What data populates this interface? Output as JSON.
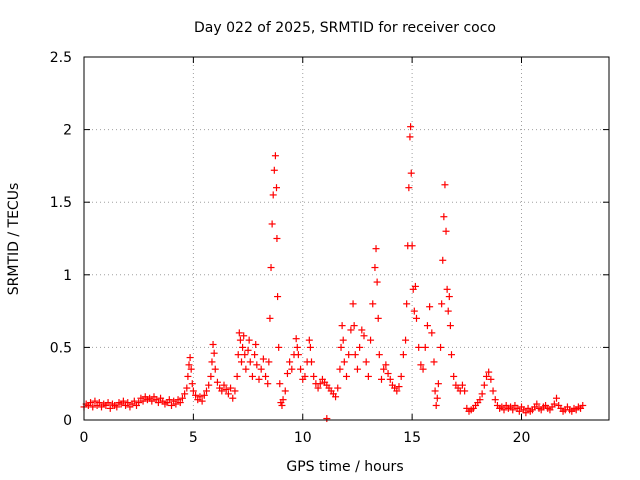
{
  "chart_data": {
    "type": "scatter",
    "title": "Day 022 of 2025, SRMTID for receiver coco",
    "xlabel": "GPS time / hours",
    "ylabel": "SRMTID / TECUs",
    "xlim": [
      0,
      24
    ],
    "ylim": [
      0,
      2.5
    ],
    "xticks": [
      0,
      5,
      10,
      15,
      20
    ],
    "xtick_labels": [
      "0",
      "5",
      "10",
      "15",
      "20"
    ],
    "yticks": [
      0,
      0.5,
      1,
      1.5,
      2,
      2.5
    ],
    "ytick_labels": [
      "0",
      "0.5",
      "1",
      "1.5",
      "2",
      "2.5"
    ],
    "grid": true,
    "marker": "+",
    "color": "#ff0000",
    "series": [
      {
        "name": "SRMTID",
        "points": [
          [
            0.0,
            0.09
          ],
          [
            0.1,
            0.11
          ],
          [
            0.2,
            0.1
          ],
          [
            0.3,
            0.12
          ],
          [
            0.4,
            0.09
          ],
          [
            0.5,
            0.13
          ],
          [
            0.6,
            0.1
          ],
          [
            0.7,
            0.12
          ],
          [
            0.8,
            0.09
          ],
          [
            0.9,
            0.11
          ],
          [
            1.0,
            0.1
          ],
          [
            1.1,
            0.12
          ],
          [
            1.2,
            0.08
          ],
          [
            1.3,
            0.11
          ],
          [
            1.4,
            0.1
          ],
          [
            1.5,
            0.09
          ],
          [
            1.6,
            0.12
          ],
          [
            1.7,
            0.11
          ],
          [
            1.8,
            0.13
          ],
          [
            1.9,
            0.1
          ],
          [
            2.0,
            0.12
          ],
          [
            2.1,
            0.09
          ],
          [
            2.2,
            0.11
          ],
          [
            2.3,
            0.13
          ],
          [
            2.4,
            0.1
          ],
          [
            2.5,
            0.12
          ],
          [
            2.6,
            0.15
          ],
          [
            2.7,
            0.13
          ],
          [
            2.8,
            0.16
          ],
          [
            2.9,
            0.14
          ],
          [
            3.0,
            0.15
          ],
          [
            3.1,
            0.13
          ],
          [
            3.2,
            0.16
          ],
          [
            3.3,
            0.14
          ],
          [
            3.4,
            0.12
          ],
          [
            3.5,
            0.15
          ],
          [
            3.6,
            0.13
          ],
          [
            3.7,
            0.11
          ],
          [
            3.8,
            0.12
          ],
          [
            3.9,
            0.14
          ],
          [
            4.0,
            0.1
          ],
          [
            4.1,
            0.13
          ],
          [
            4.2,
            0.11
          ],
          [
            4.3,
            0.14
          ],
          [
            4.4,
            0.12
          ],
          [
            4.5,
            0.15
          ],
          [
            4.6,
            0.18
          ],
          [
            4.7,
            0.22
          ],
          [
            4.75,
            0.3
          ],
          [
            4.8,
            0.38
          ],
          [
            4.85,
            0.43
          ],
          [
            4.9,
            0.35
          ],
          [
            4.95,
            0.25
          ],
          [
            5.0,
            0.2
          ],
          [
            5.1,
            0.17
          ],
          [
            5.2,
            0.14
          ],
          [
            5.3,
            0.16
          ],
          [
            5.4,
            0.13
          ],
          [
            5.5,
            0.17
          ],
          [
            5.6,
            0.2
          ],
          [
            5.7,
            0.24
          ],
          [
            5.8,
            0.3
          ],
          [
            5.85,
            0.4
          ],
          [
            5.9,
            0.52
          ],
          [
            5.95,
            0.46
          ],
          [
            6.0,
            0.35
          ],
          [
            6.1,
            0.26
          ],
          [
            6.2,
            0.22
          ],
          [
            6.3,
            0.2
          ],
          [
            6.4,
            0.24
          ],
          [
            6.5,
            0.21
          ],
          [
            6.6,
            0.18
          ],
          [
            6.7,
            0.22
          ],
          [
            6.8,
            0.15
          ],
          [
            6.9,
            0.2
          ],
          [
            7.0,
            0.3
          ],
          [
            7.05,
            0.45
          ],
          [
            7.1,
            0.6
          ],
          [
            7.15,
            0.55
          ],
          [
            7.2,
            0.4
          ],
          [
            7.25,
            0.5
          ],
          [
            7.3,
            0.58
          ],
          [
            7.35,
            0.45
          ],
          [
            7.4,
            0.35
          ],
          [
            7.5,
            0.48
          ],
          [
            7.55,
            0.55
          ],
          [
            7.6,
            0.4
          ],
          [
            7.7,
            0.3
          ],
          [
            7.8,
            0.45
          ],
          [
            7.85,
            0.52
          ],
          [
            7.9,
            0.38
          ],
          [
            8.0,
            0.28
          ],
          [
            8.1,
            0.35
          ],
          [
            8.2,
            0.42
          ],
          [
            8.3,
            0.3
          ],
          [
            8.4,
            0.25
          ],
          [
            8.45,
            0.4
          ],
          [
            8.5,
            0.7
          ],
          [
            8.55,
            1.05
          ],
          [
            8.6,
            1.35
          ],
          [
            8.65,
            1.55
          ],
          [
            8.7,
            1.72
          ],
          [
            8.75,
            1.82
          ],
          [
            8.8,
            1.6
          ],
          [
            8.82,
            1.25
          ],
          [
            8.85,
            0.85
          ],
          [
            8.9,
            0.5
          ],
          [
            8.95,
            0.25
          ],
          [
            9.0,
            0.12
          ],
          [
            9.05,
            0.1
          ],
          [
            9.1,
            0.14
          ],
          [
            9.2,
            0.2
          ],
          [
            9.3,
            0.32
          ],
          [
            9.4,
            0.4
          ],
          [
            9.5,
            0.35
          ],
          [
            9.6,
            0.45
          ],
          [
            9.7,
            0.56
          ],
          [
            9.75,
            0.5
          ],
          [
            9.8,
            0.45
          ],
          [
            9.9,
            0.35
          ],
          [
            10.0,
            0.28
          ],
          [
            10.1,
            0.3
          ],
          [
            10.2,
            0.4
          ],
          [
            10.3,
            0.55
          ],
          [
            10.35,
            0.5
          ],
          [
            10.4,
            0.4
          ],
          [
            10.5,
            0.3
          ],
          [
            10.6,
            0.25
          ],
          [
            10.7,
            0.22
          ],
          [
            10.8,
            0.25
          ],
          [
            10.9,
            0.28
          ],
          [
            11.0,
            0.26
          ],
          [
            11.1,
            0.24
          ],
          [
            11.2,
            0.22
          ],
          [
            11.3,
            0.2
          ],
          [
            11.4,
            0.18
          ],
          [
            11.5,
            0.16
          ],
          [
            11.6,
            0.22
          ],
          [
            11.7,
            0.35
          ],
          [
            11.75,
            0.5
          ],
          [
            11.8,
            0.65
          ],
          [
            11.85,
            0.55
          ],
          [
            11.9,
            0.4
          ],
          [
            12.0,
            0.3
          ],
          [
            12.1,
            0.45
          ],
          [
            12.2,
            0.62
          ],
          [
            12.3,
            0.8
          ],
          [
            12.35,
            0.65
          ],
          [
            12.4,
            0.45
          ],
          [
            12.5,
            0.35
          ],
          [
            12.6,
            0.5
          ],
          [
            12.7,
            0.62
          ],
          [
            12.8,
            0.58
          ],
          [
            12.9,
            0.4
          ],
          [
            13.0,
            0.3
          ],
          [
            13.1,
            0.55
          ],
          [
            13.2,
            0.8
          ],
          [
            13.3,
            1.05
          ],
          [
            13.35,
            1.18
          ],
          [
            13.4,
            0.95
          ],
          [
            13.45,
            0.7
          ],
          [
            13.5,
            0.45
          ],
          [
            13.6,
            0.28
          ],
          [
            13.7,
            0.35
          ],
          [
            13.8,
            0.38
          ],
          [
            13.9,
            0.32
          ],
          [
            14.0,
            0.28
          ],
          [
            14.1,
            0.24
          ],
          [
            14.2,
            0.22
          ],
          [
            14.3,
            0.2
          ],
          [
            14.4,
            0.23
          ],
          [
            14.5,
            0.3
          ],
          [
            14.6,
            0.45
          ],
          [
            14.7,
            0.55
          ],
          [
            14.75,
            0.8
          ],
          [
            14.8,
            1.2
          ],
          [
            14.85,
            1.6
          ],
          [
            14.9,
            1.95
          ],
          [
            14.93,
            2.02
          ],
          [
            14.96,
            1.7
          ],
          [
            15.0,
            1.2
          ],
          [
            15.05,
            0.9
          ],
          [
            15.1,
            0.75
          ],
          [
            15.15,
            0.92
          ],
          [
            15.2,
            0.7
          ],
          [
            15.3,
            0.5
          ],
          [
            15.4,
            0.38
          ],
          [
            15.5,
            0.35
          ],
          [
            15.6,
            0.5
          ],
          [
            15.7,
            0.65
          ],
          [
            15.8,
            0.78
          ],
          [
            15.9,
            0.6
          ],
          [
            16.0,
            0.4
          ],
          [
            16.05,
            0.2
          ],
          [
            16.1,
            0.1
          ],
          [
            16.15,
            0.15
          ],
          [
            16.2,
            0.25
          ],
          [
            16.3,
            0.5
          ],
          [
            16.35,
            0.8
          ],
          [
            16.4,
            1.1
          ],
          [
            16.45,
            1.4
          ],
          [
            16.5,
            1.62
          ],
          [
            16.55,
            1.3
          ],
          [
            16.6,
            0.9
          ],
          [
            16.65,
            0.75
          ],
          [
            16.7,
            0.85
          ],
          [
            16.75,
            0.65
          ],
          [
            16.8,
            0.45
          ],
          [
            16.9,
            0.3
          ],
          [
            17.0,
            0.24
          ],
          [
            17.1,
            0.22
          ],
          [
            17.2,
            0.2
          ],
          [
            17.3,
            0.24
          ],
          [
            17.4,
            0.2
          ],
          [
            17.5,
            0.08
          ],
          [
            17.6,
            0.06
          ],
          [
            17.7,
            0.07
          ],
          [
            17.8,
            0.08
          ],
          [
            17.9,
            0.1
          ],
          [
            18.0,
            0.12
          ],
          [
            18.1,
            0.14
          ],
          [
            18.2,
            0.18
          ],
          [
            18.3,
            0.24
          ],
          [
            18.4,
            0.3
          ],
          [
            18.5,
            0.33
          ],
          [
            18.6,
            0.28
          ],
          [
            18.7,
            0.2
          ],
          [
            18.8,
            0.14
          ],
          [
            18.9,
            0.1
          ],
          [
            19.0,
            0.08
          ],
          [
            19.1,
            0.09
          ],
          [
            19.2,
            0.07
          ],
          [
            19.3,
            0.1
          ],
          [
            19.4,
            0.08
          ],
          [
            19.5,
            0.09
          ],
          [
            19.6,
            0.07
          ],
          [
            19.7,
            0.1
          ],
          [
            19.8,
            0.08
          ],
          [
            19.9,
            0.06
          ],
          [
            20.0,
            0.09
          ],
          [
            20.1,
            0.07
          ],
          [
            20.2,
            0.05
          ],
          [
            20.3,
            0.08
          ],
          [
            20.4,
            0.06
          ],
          [
            20.5,
            0.07
          ],
          [
            20.6,
            0.09
          ],
          [
            20.7,
            0.11
          ],
          [
            20.8,
            0.08
          ],
          [
            20.9,
            0.07
          ],
          [
            21.0,
            0.09
          ],
          [
            21.1,
            0.1
          ],
          [
            21.2,
            0.08
          ],
          [
            21.3,
            0.07
          ],
          [
            21.4,
            0.09
          ],
          [
            21.5,
            0.11
          ],
          [
            21.6,
            0.15
          ],
          [
            21.7,
            0.1
          ],
          [
            21.8,
            0.08
          ],
          [
            21.9,
            0.06
          ],
          [
            22.0,
            0.07
          ],
          [
            22.1,
            0.09
          ],
          [
            22.2,
            0.07
          ],
          [
            22.3,
            0.06
          ],
          [
            22.4,
            0.08
          ],
          [
            22.5,
            0.07
          ],
          [
            22.6,
            0.09
          ],
          [
            22.7,
            0.08
          ],
          [
            22.8,
            0.1
          ],
          [
            11.1,
            0.01
          ]
        ]
      }
    ]
  }
}
